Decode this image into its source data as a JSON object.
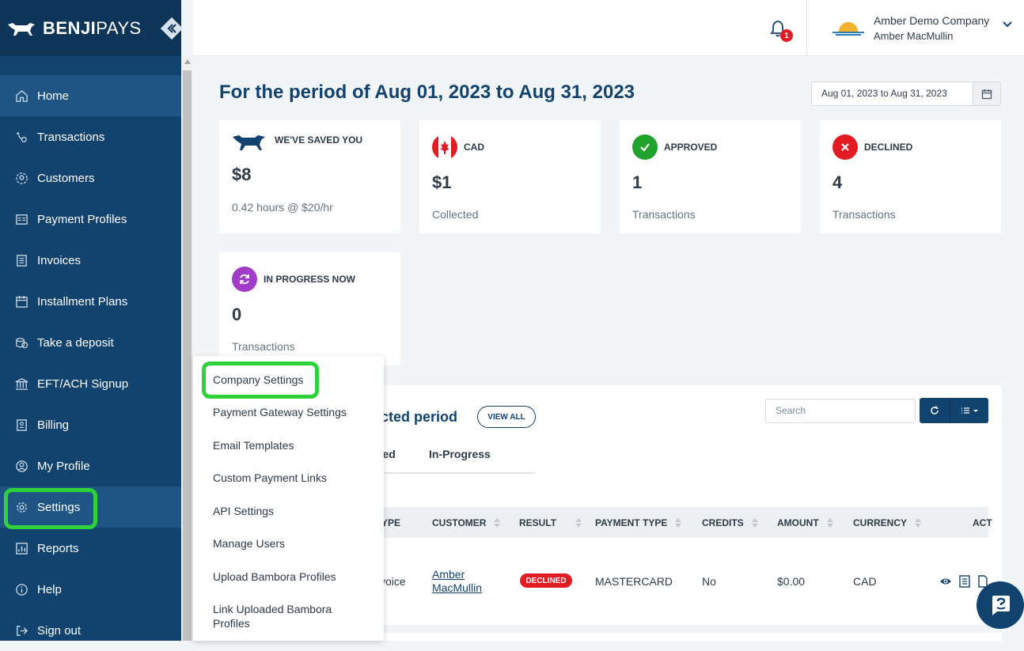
{
  "brand": {
    "name_bold": "BENJI",
    "name_light": "PAYS"
  },
  "topbar": {
    "notification_count": "1",
    "company": "Amber Demo Company",
    "user": "Amber MacMullin"
  },
  "nav": [
    {
      "label": "Home",
      "icon": "home-icon"
    },
    {
      "label": "Transactions",
      "icon": "transactions-icon"
    },
    {
      "label": "Customers",
      "icon": "customers-icon"
    },
    {
      "label": "Payment Profiles",
      "icon": "payment-profiles-icon"
    },
    {
      "label": "Invoices",
      "icon": "invoices-icon"
    },
    {
      "label": "Installment Plans",
      "icon": "calendar-icon"
    },
    {
      "label": "Take a deposit",
      "icon": "coins-icon"
    },
    {
      "label": "EFT/ACH Signup",
      "icon": "bank-icon"
    },
    {
      "label": "Billing",
      "icon": "billing-icon"
    },
    {
      "label": "My Profile",
      "icon": "profile-icon"
    },
    {
      "label": "Settings",
      "icon": "gear-icon"
    },
    {
      "label": "Reports",
      "icon": "reports-icon"
    },
    {
      "label": "Help",
      "icon": "help-icon"
    },
    {
      "label": "Sign out",
      "icon": "sign-out-icon"
    }
  ],
  "period": {
    "title": "For the period of Aug 01, 2023 to Aug 31, 2023",
    "range": "Aug 01, 2023 to Aug 31, 2023"
  },
  "cards": {
    "saved": {
      "label": "WE'VE SAVED YOU",
      "value": "$8",
      "sub": "0.42 hours @ $20/hr"
    },
    "cad": {
      "label": "CAD",
      "value": "$1",
      "sub": "Collected"
    },
    "approved": {
      "label": "APPROVED",
      "value": "1",
      "sub": "Transactions"
    },
    "declined": {
      "label": "DECLINED",
      "value": "4",
      "sub": "Transactions"
    },
    "inprogress": {
      "label": "IN PROGRESS NOW",
      "value": "0",
      "sub": "Transactions"
    }
  },
  "panel": {
    "title": "cted period",
    "view_all": "VIEW ALL",
    "search_placeholder": "Search",
    "tabs": [
      "ined",
      "In-Progress"
    ],
    "columns": [
      "YPE",
      "CUSTOMER",
      "RESULT",
      "PAYMENT TYPE",
      "CREDITS",
      "AMOUNT",
      "CURRENCY",
      "ACT"
    ],
    "row": {
      "type": "voice",
      "customer_first": "Amber",
      "customer_last": "MacMullin",
      "result": "DECLINED",
      "payment_type": "MASTERCARD",
      "credits": "No",
      "amount": "$0.00",
      "currency": "CAD"
    }
  },
  "settings_menu": [
    "Company Settings",
    "Payment Gateway Settings",
    "Email Templates",
    "Custom Payment Links",
    "API Settings",
    "Manage Users",
    "Upload Bambora Profiles",
    "Link Uploaded Bambora Profiles"
  ],
  "colors": {
    "primary": "#12436f",
    "accent_highlight": "#2ed23a",
    "declined": "#e31b23",
    "approved": "#1fa32c",
    "inprogress": "#a23bc9"
  }
}
